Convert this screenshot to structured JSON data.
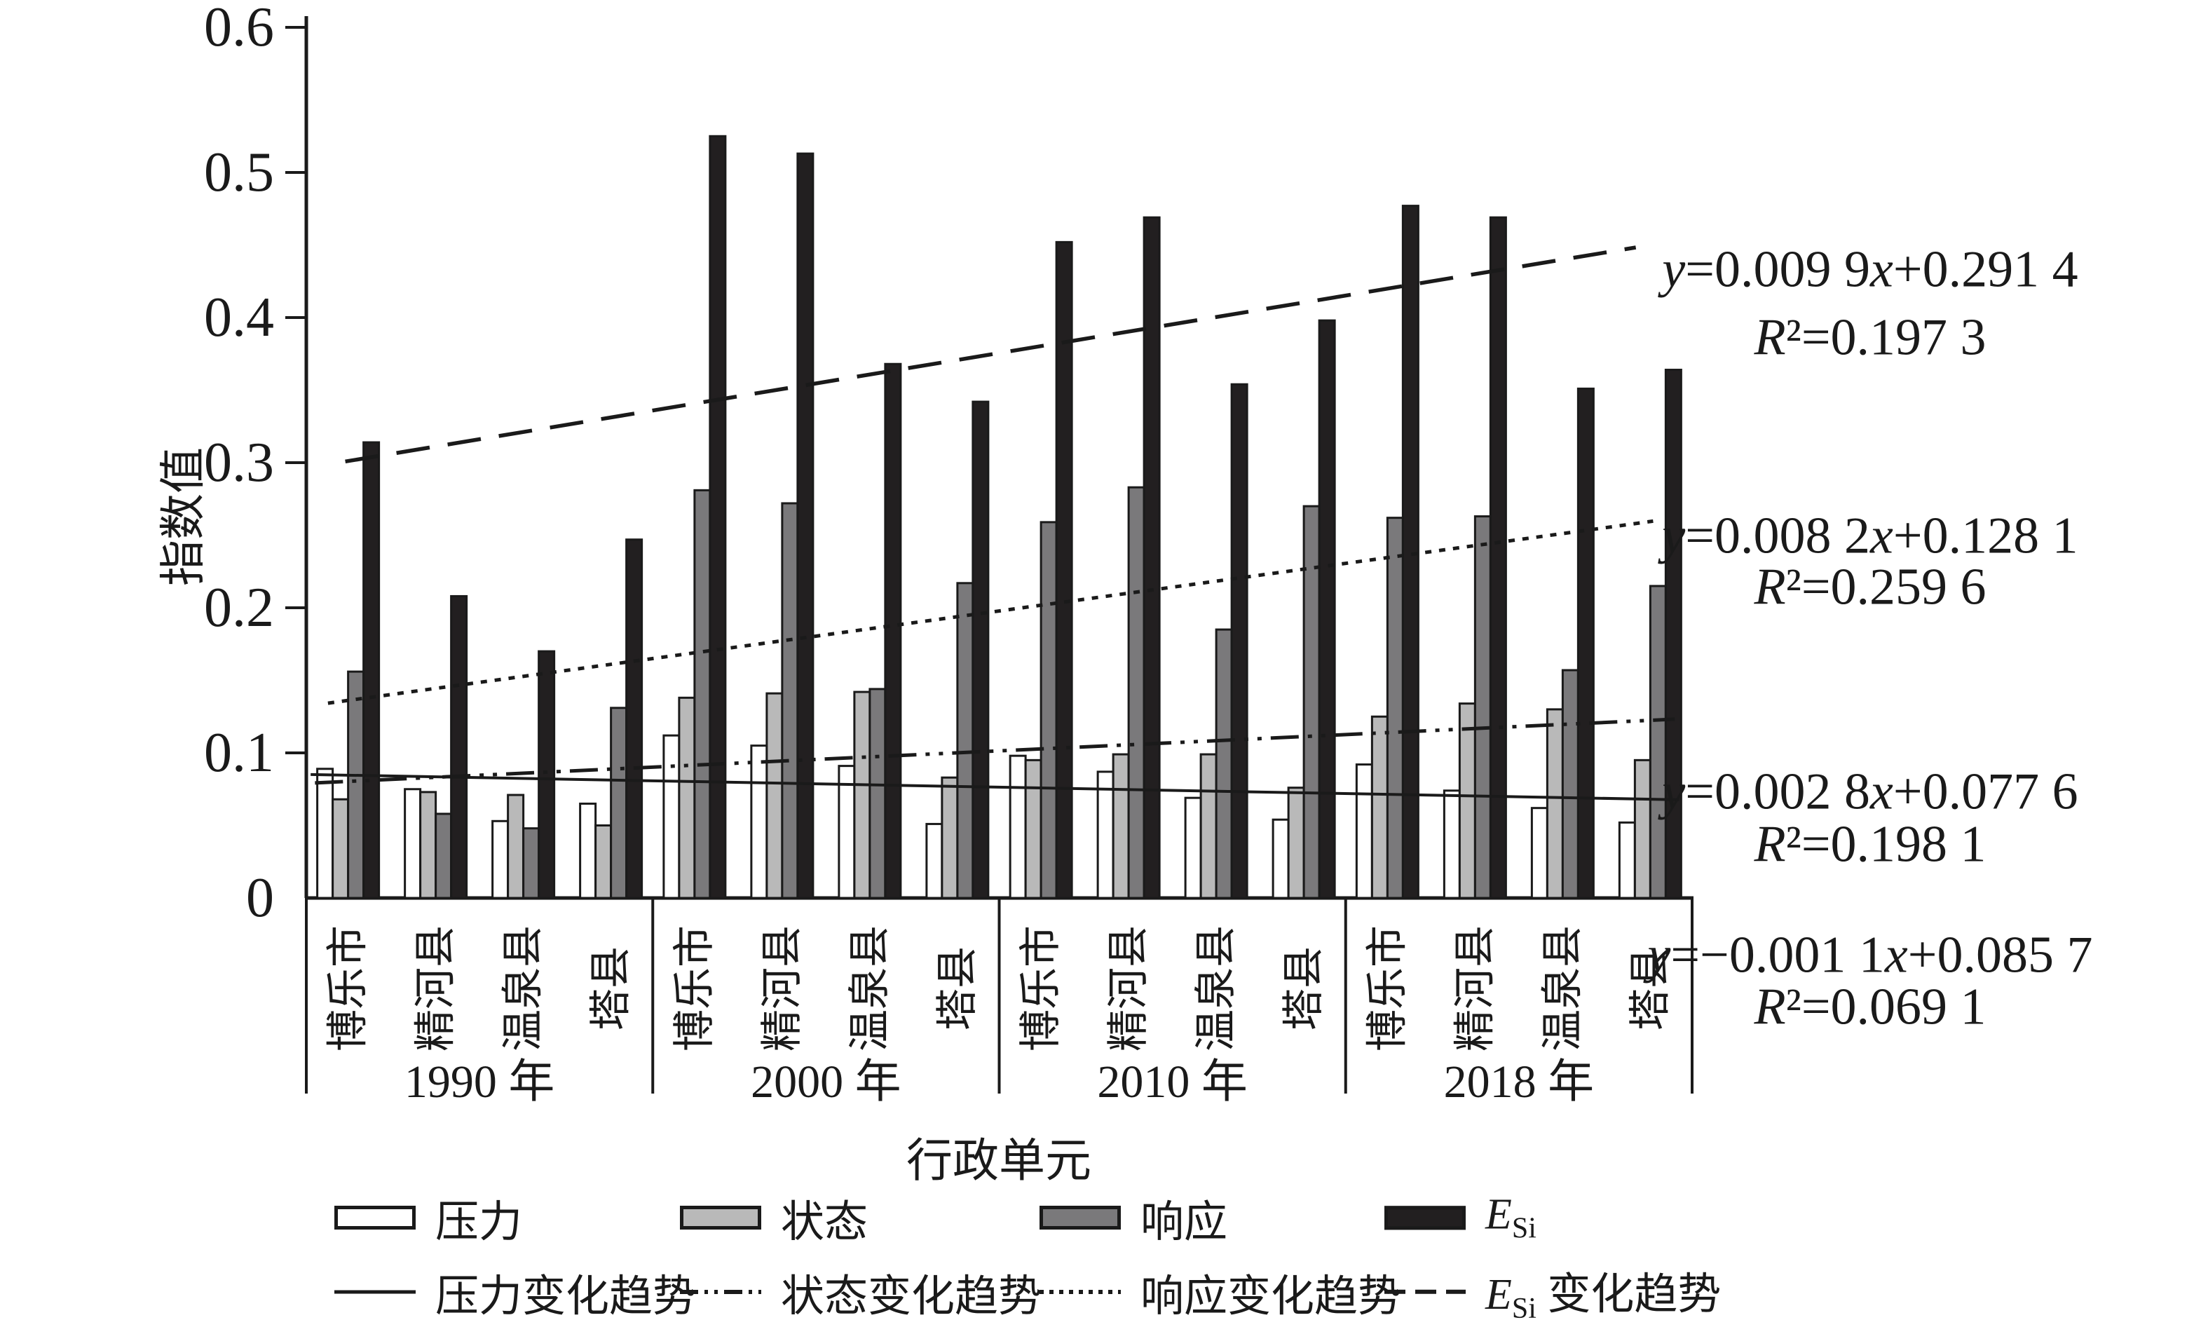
{
  "chart_data": {
    "type": "bar",
    "title": "",
    "xlabel": "行政单元",
    "ylabel": "指数值",
    "ylim": [
      0,
      0.6
    ],
    "yticks": [
      "0",
      "0.1",
      "0.2",
      "0.3",
      "0.4",
      "0.5",
      "0.6"
    ],
    "grid": false,
    "years": [
      "1990 年",
      "2000 年",
      "2010 年",
      "2018 年"
    ],
    "cities": [
      "博乐市",
      "精河县",
      "温泉县",
      "塔县"
    ],
    "series": [
      {
        "name": "压力",
        "color": "#ffffff",
        "values": [
          0.089,
          0.075,
          0.053,
          0.065,
          0.112,
          0.105,
          0.091,
          0.051,
          0.098,
          0.087,
          0.069,
          0.054,
          0.092,
          0.074,
          0.062,
          0.052
        ]
      },
      {
        "name": "状态",
        "color": "#b9b9b9",
        "values": [
          0.068,
          0.073,
          0.071,
          0.05,
          0.138,
          0.141,
          0.142,
          0.083,
          0.095,
          0.099,
          0.099,
          0.076,
          0.125,
          0.134,
          0.13,
          0.095
        ]
      },
      {
        "name": "响应",
        "color": "#7a797b",
        "values": [
          0.156,
          0.058,
          0.048,
          0.131,
          0.281,
          0.272,
          0.144,
          0.217,
          0.259,
          0.283,
          0.185,
          0.27,
          0.262,
          0.263,
          0.157,
          0.215
        ]
      },
      {
        "name": "E_Si",
        "label_main": "E",
        "label_sub": "Si",
        "color": "#221f20",
        "values": [
          0.314,
          0.208,
          0.17,
          0.247,
          0.525,
          0.513,
          0.368,
          0.342,
          0.452,
          0.469,
          0.354,
          0.398,
          0.477,
          0.469,
          0.351,
          0.364
        ]
      }
    ],
    "trend_lines": [
      {
        "name": "压力变化趋势",
        "style": "solid",
        "slope": -0.0011,
        "intercept": 0.0857,
        "equation": "y=−0.001 1x+0.085 7",
        "r2": "R²=0.069 1"
      },
      {
        "name": "状态变化趋势",
        "style": "dashdotdot",
        "slope": 0.0028,
        "intercept": 0.0776,
        "equation": "y=0.002 8x+0.077 6",
        "r2": "R²=0.198 1"
      },
      {
        "name": "响应变化趋势",
        "style": "dotted",
        "slope": 0.0082,
        "intercept": 0.1281,
        "equation": "y=0.008 2x+0.128 1",
        "r2": "R²=0.259 6"
      },
      {
        "name": "E_Si 变化趋势",
        "label_main": "E",
        "label_sub": "Si",
        "label_tail": " 变化趋势",
        "style": "dashed",
        "slope": 0.0099,
        "intercept": 0.2914,
        "equation": "y=0.009 9x+0.291 4",
        "r2": "R²=0.197 3"
      }
    ],
    "equations_top_to_bottom": [
      {
        "eq": "y=0.009 9x+0.291 4",
        "r2": "R²=0.197 3"
      },
      {
        "eq": "y=0.008 2x+0.128 1",
        "r2": "R²=0.259 6"
      },
      {
        "eq": "y=0.002 8x+0.077 6",
        "r2": "R²=0.198 1"
      },
      {
        "eq": "y=−0.001 1x+0.085 7",
        "r2": "R²=0.069 1"
      }
    ],
    "legend": {
      "series_row": [
        {
          "label": "压力"
        },
        {
          "label": "状态"
        },
        {
          "label": "响应"
        },
        {
          "main": "E",
          "sub": "Si"
        }
      ],
      "trend_row": [
        {
          "label": "压力变化趋势"
        },
        {
          "label": "状态变化趋势"
        },
        {
          "label": "响应变化趋势"
        },
        {
          "main": "E",
          "sub": "Si",
          "tail": " 变化趋势"
        }
      ]
    },
    "colors": {
      "axis": "#1a1a1a",
      "bar_stroke": "#1a1a1a",
      "text": "#1a1a1a"
    }
  }
}
